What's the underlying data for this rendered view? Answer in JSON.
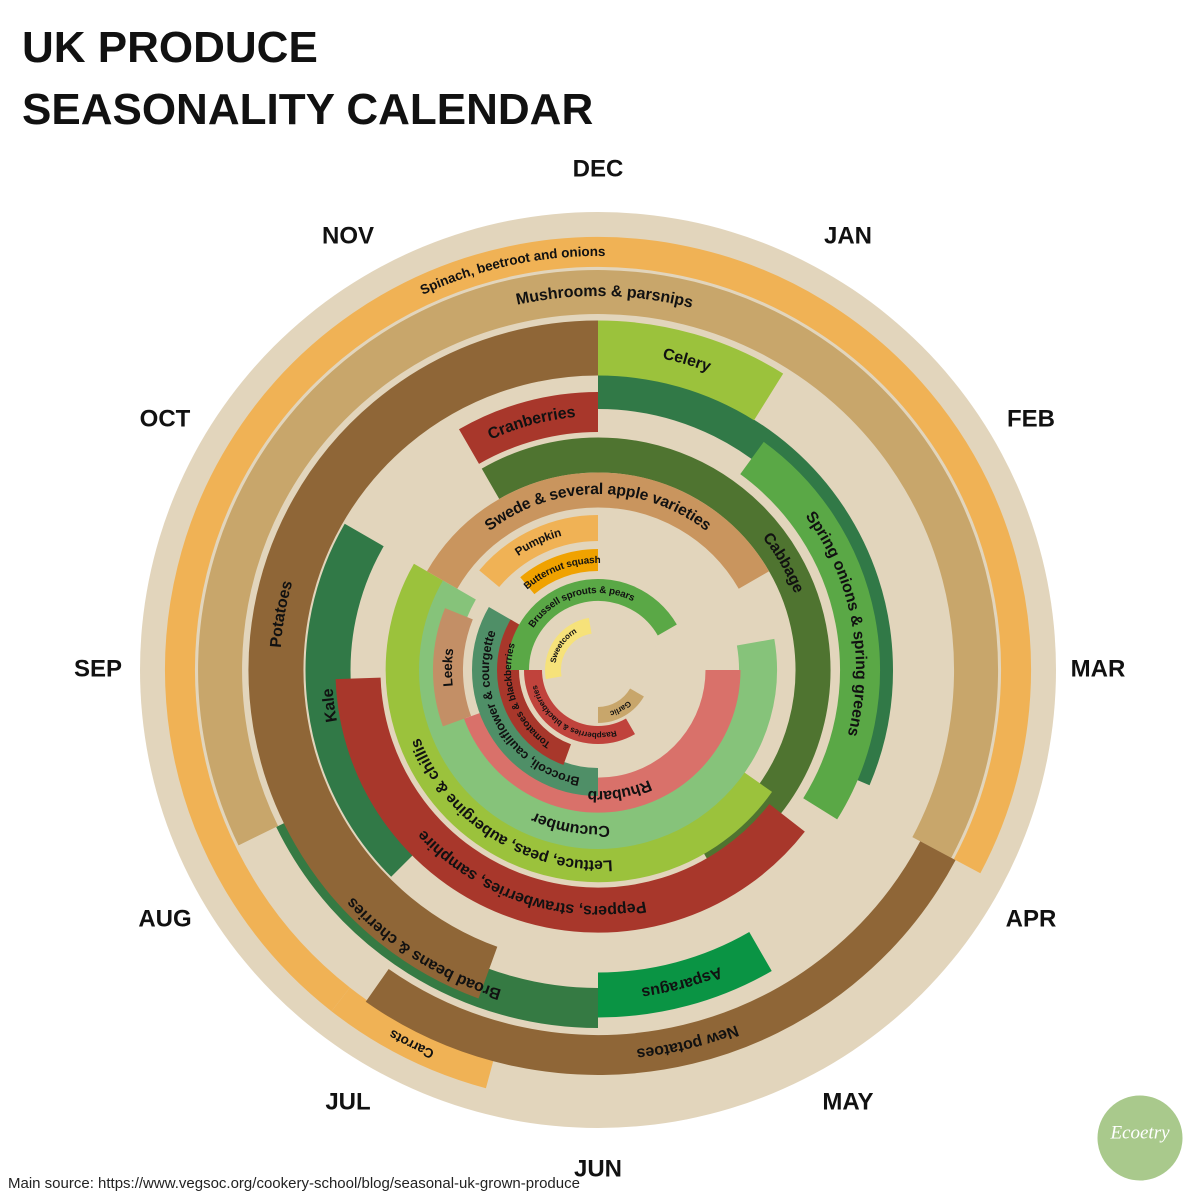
{
  "header": {
    "title": [
      "UK PRODUCE",
      "SEASONALITY CALENDAR"
    ]
  },
  "months": [
    "DEC",
    "JAN",
    "FEB",
    "MAR",
    "APR",
    "MAY",
    "JUN",
    "JUL",
    "AUG",
    "SEP",
    "OCT",
    "NOV"
  ],
  "produce": [
    {
      "label": "Spinach, beetroot and onions",
      "color": "#f0b255"
    },
    {
      "label": "Carrots",
      "color": "#f0b255"
    },
    {
      "label": "Mushrooms & parsnips",
      "color": "#c8a66b"
    },
    {
      "label": "New potatoes",
      "color": "#8f6637"
    },
    {
      "label": "Broad beans & cherries",
      "color": "#357a43"
    },
    {
      "label": "Celery",
      "color": "#9bc23c"
    },
    {
      "label": "Potatoes",
      "color": "#8f6637"
    },
    {
      "label": "Asparagus",
      "color": "#0a9444"
    },
    {
      "label": "Cranberries",
      "color": "#a8372b"
    },
    {
      "label": "Kale",
      "color": "#317947"
    },
    {
      "label": "Spring onions & spring greens",
      "color": "#5aa846"
    },
    {
      "label": "Cabbage",
      "color": "#4f7430"
    },
    {
      "label": "Peppers, strawberries, samphire",
      "color": "#a8372b"
    },
    {
      "label": "Lettuce, peas, aubergine & chillis",
      "color": "#9bc23c"
    },
    {
      "label": "Swede & several apple varieties",
      "color": "#c9955e"
    },
    {
      "label": "Cucumber",
      "color": "#86c37a"
    },
    {
      "label": "Rhubarb",
      "color": "#d9716a"
    },
    {
      "label": "Pumpkin",
      "color": "#f0b255"
    },
    {
      "label": "Leeks",
      "color": "#c38f66"
    },
    {
      "label": "Broccoli, cauliflower & courgette",
      "color": "#4f8f67"
    },
    {
      "label": "Butternut squash",
      "color": "#f0a200"
    },
    {
      "label": "Tomatoes & blackberries",
      "color": "#a8372b"
    },
    {
      "label": "Brussell sprouts & pears",
      "color": "#5aa846"
    },
    {
      "label": "Raspberries & blackberries",
      "color": "#c0433c"
    },
    {
      "label": "Sweetcorn",
      "color": "#f6e27a"
    },
    {
      "label": "Garlic",
      "color": "#c8a66b"
    }
  ],
  "source": "Main source: https://www.vegsoc.org/cookery-school/blog/seasonal-uk-grown-produce",
  "logo": "Ecoetry"
}
